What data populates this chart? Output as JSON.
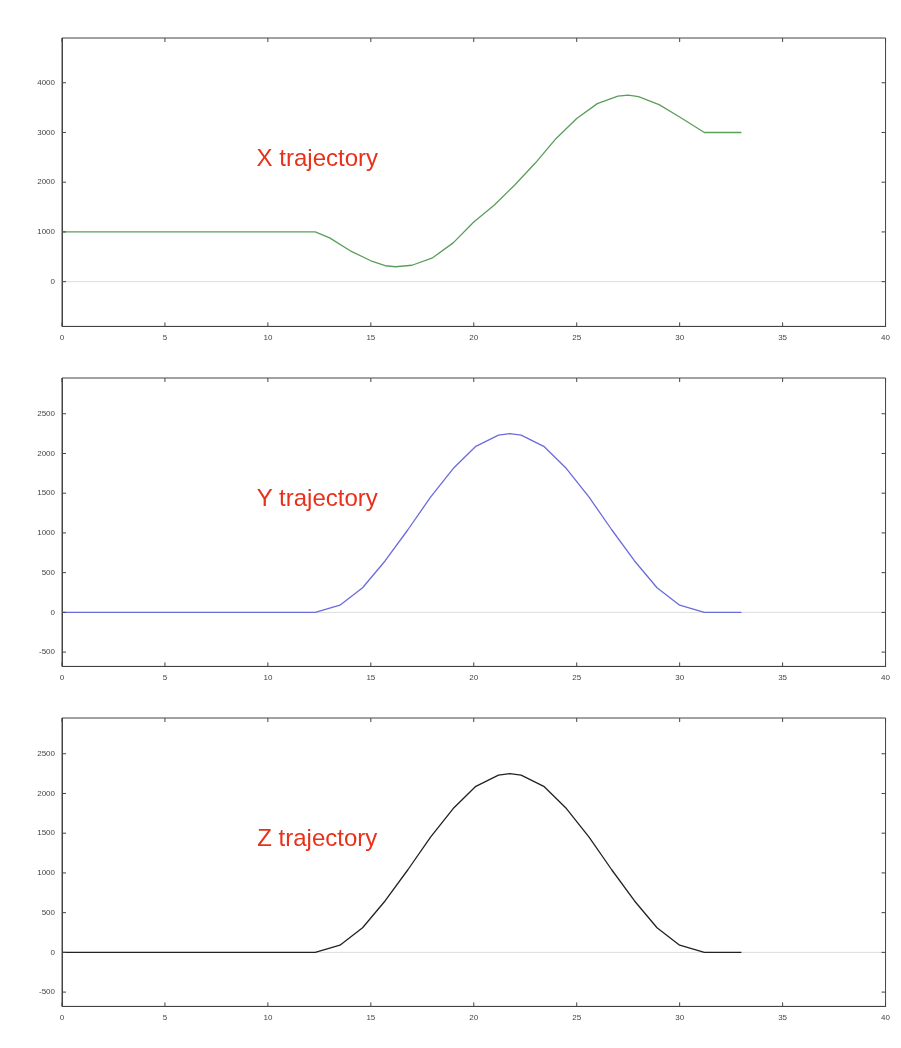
{
  "chart_data": [
    {
      "type": "line",
      "annotations": [
        "X trajectory"
      ],
      "x": [
        0,
        12.3,
        13,
        14,
        15,
        15.7,
        16.2,
        17,
        18,
        19,
        20,
        21,
        22,
        23,
        24,
        25,
        26,
        27,
        27.5,
        28,
        29,
        30,
        31.2,
        33
      ],
      "series": [
        {
          "color": "#5a9e5a",
          "values": [
            1000,
            1000,
            880,
            620,
            420,
            320,
            300,
            330,
            480,
            780,
            1200,
            1540,
            1950,
            2390,
            2880,
            3280,
            3580,
            3730,
            3750,
            3720,
            3560,
            3310,
            3000,
            3000
          ]
        }
      ],
      "xlim": [
        0,
        40
      ],
      "xticks": [
        0,
        5,
        10,
        15,
        20,
        25,
        30,
        35,
        40
      ],
      "ylim": [
        -900,
        4900
      ],
      "yticks": [
        0,
        1000,
        2000,
        3000,
        4000
      ],
      "grid": false,
      "legend": false,
      "ref_lines": [
        {
          "axis": "y",
          "value": 0,
          "color": "#dddddd"
        }
      ]
    },
    {
      "type": "line",
      "annotations": [
        "Y trajectory"
      ],
      "x": [
        0,
        12.3,
        13.5,
        14.6,
        15.7,
        16.8,
        17.9,
        19,
        20.1,
        21.2,
        21.75,
        22.3,
        23.4,
        24.5,
        25.6,
        26.7,
        27.8,
        28.9,
        30,
        31.2,
        33
      ],
      "series": [
        {
          "color": "#6b6bdc",
          "values": [
            0,
            0,
            90,
            310,
            650,
            1040,
            1450,
            1810,
            2090,
            2230,
            2250,
            2230,
            2090,
            1810,
            1450,
            1040,
            650,
            310,
            90,
            0,
            0
          ]
        }
      ],
      "xlim": [
        0,
        40
      ],
      "xticks": [
        0,
        5,
        10,
        15,
        20,
        25,
        30,
        35,
        40
      ],
      "ylim": [
        -680,
        2950
      ],
      "yticks": [
        -500,
        0,
        500,
        1000,
        1500,
        2000,
        2500
      ],
      "grid": false,
      "legend": false,
      "ref_lines": [
        {
          "axis": "y",
          "value": 0,
          "color": "#dddddd"
        }
      ]
    },
    {
      "type": "line",
      "annotations": [
        "Z trajectory"
      ],
      "x": [
        0,
        12.3,
        13.5,
        14.6,
        15.7,
        16.8,
        17.9,
        19,
        20.1,
        21.2,
        21.75,
        22.3,
        23.4,
        24.5,
        25.6,
        26.7,
        27.8,
        28.9,
        30,
        31.2,
        33
      ],
      "series": [
        {
          "color": "#222222",
          "values": [
            0,
            0,
            90,
            310,
            650,
            1040,
            1450,
            1810,
            2090,
            2230,
            2250,
            2230,
            2090,
            1810,
            1450,
            1040,
            650,
            310,
            90,
            0,
            0
          ]
        }
      ],
      "xlim": [
        0,
        40
      ],
      "xticks": [
        0,
        5,
        10,
        15,
        20,
        25,
        30,
        35,
        40
      ],
      "ylim": [
        -680,
        2950
      ],
      "yticks": [
        -500,
        0,
        500,
        1000,
        1500,
        2000,
        2500
      ],
      "grid": false,
      "legend": false,
      "ref_lines": [
        {
          "axis": "y",
          "value": 0,
          "color": "#dddddd"
        }
      ]
    }
  ]
}
